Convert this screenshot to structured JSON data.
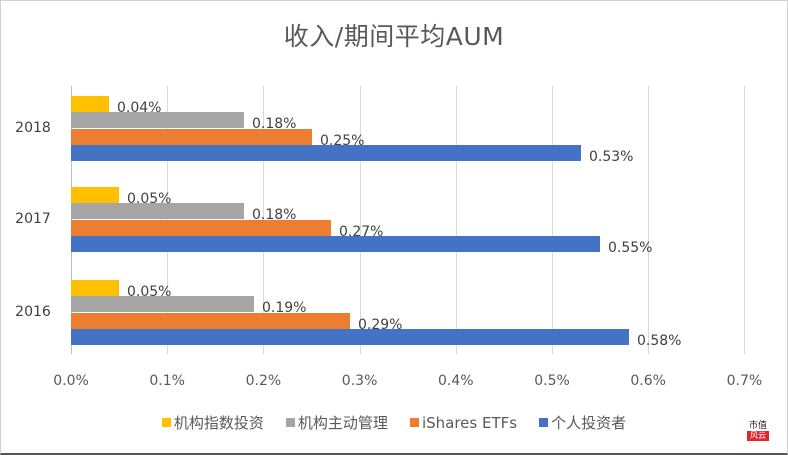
{
  "chart": {
    "title": "收入/期间平均AUM",
    "x_ticks": [
      "0.0%",
      "0.1%",
      "0.2%",
      "0.3%",
      "0.4%",
      "0.5%",
      "0.6%",
      "0.7%"
    ],
    "legend": [
      {
        "label": "机构指数投资",
        "color": "#FFC000"
      },
      {
        "label": "机构主动管理",
        "color": "#A5A5A5"
      },
      {
        "label": "iShares ETFs",
        "color": "#ED7D31"
      },
      {
        "label": "个人投资者",
        "color": "#4472C4"
      }
    ],
    "groups": [
      {
        "category": "2018",
        "labels": [
          "0.04%",
          "0.18%",
          "0.25%",
          "0.53%"
        ]
      },
      {
        "category": "2017",
        "labels": [
          "0.05%",
          "0.18%",
          "0.27%",
          "0.55%"
        ]
      },
      {
        "category": "2016",
        "labels": [
          "0.05%",
          "0.19%",
          "0.29%",
          "0.58%"
        ]
      }
    ],
    "watermark": {
      "top": "市值",
      "bottom": "风云"
    }
  },
  "chart_data": {
    "type": "bar",
    "orientation": "horizontal",
    "title": "收入/期间平均AUM",
    "categories": [
      "2018",
      "2017",
      "2016"
    ],
    "series": [
      {
        "name": "机构指数投资",
        "color": "#FFC000",
        "values": [
          0.04,
          0.05,
          0.05
        ]
      },
      {
        "name": "机构主动管理",
        "color": "#A5A5A5",
        "values": [
          0.18,
          0.18,
          0.19
        ]
      },
      {
        "name": "iShares ETFs",
        "color": "#ED7D31",
        "values": [
          0.25,
          0.27,
          0.29
        ]
      },
      {
        "name": "个人投资者",
        "color": "#4472C4",
        "values": [
          0.53,
          0.55,
          0.58
        ]
      }
    ],
    "xlabel": "",
    "ylabel": "",
    "value_unit": "%",
    "xlim": [
      0,
      0.7
    ],
    "x_ticks": [
      "0.0%",
      "0.1%",
      "0.2%",
      "0.3%",
      "0.4%",
      "0.5%",
      "0.6%",
      "0.7%"
    ],
    "grid": true,
    "legend_position": "bottom"
  }
}
